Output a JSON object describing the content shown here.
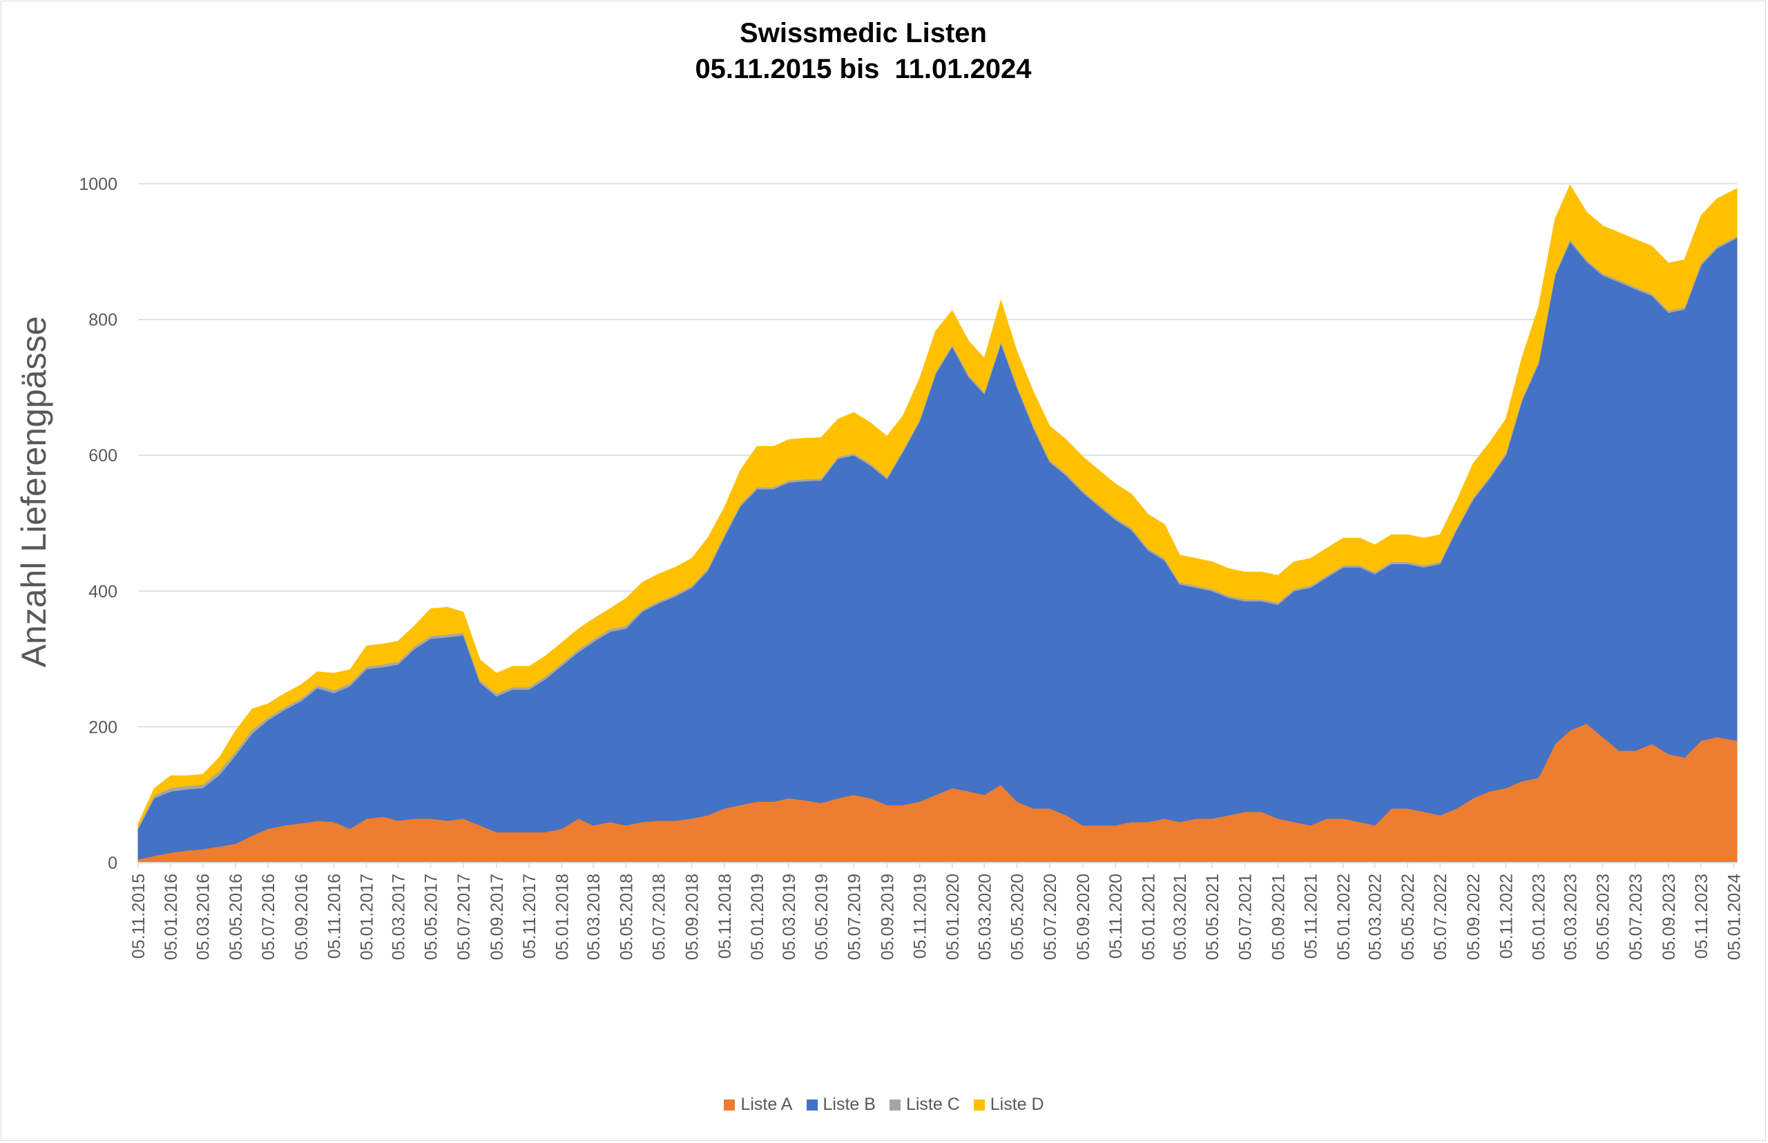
{
  "chart_data": {
    "type": "area",
    "stacked": true,
    "title": "Swissmedic Listen\n05.11.2015 bis  11.01.2024",
    "ylabel": "Anzahl Lieferengpässe",
    "xlabel": "",
    "ylim": [
      0,
      1100
    ],
    "yticks": [
      "0",
      "200",
      "400",
      "600",
      "800",
      "1000"
    ],
    "grid": "horizontal",
    "legend": "bottom",
    "x_start": "05.11.2015",
    "x_end": "11.01.2024",
    "x_tick_labels": [
      "05.11.2015",
      "05.01.2016",
      "05.03.2016",
      "05.05.2016",
      "05.07.2016",
      "05.09.2016",
      "05.11.2016",
      "05.01.2017",
      "05.03.2017",
      "05.05.2017",
      "05.07.2017",
      "05.09.2017",
      "05.11.2017",
      "05.01.2018",
      "05.03.2018",
      "05.05.2018",
      "05.07.2018",
      "05.09.2018",
      "05.11.2018",
      "05.01.2019",
      "05.03.2019",
      "05.05.2019",
      "05.07.2019",
      "05.09.2019",
      "05.11.2019",
      "05.01.2020",
      "05.03.2020",
      "05.05.2020",
      "05.07.2020",
      "05.09.2020",
      "05.11.2020",
      "05.01.2021",
      "05.03.2021",
      "05.05.2021",
      "05.07.2021",
      "05.09.2021",
      "05.11.2021",
      "05.01.2022",
      "05.03.2022",
      "05.05.2022",
      "05.07.2022",
      "05.09.2022",
      "05.11.2022",
      "05.01.2023",
      "05.03.2023",
      "05.05.2023",
      "05.07.2023",
      "05.09.2023",
      "05.11.2023",
      "05.01.2024"
    ],
    "x": [
      "05.11.2015",
      "05.12.2015",
      "05.01.2016",
      "05.02.2016",
      "05.03.2016",
      "05.04.2016",
      "05.05.2016",
      "05.06.2016",
      "05.07.2016",
      "05.08.2016",
      "05.09.2016",
      "05.10.2016",
      "05.11.2016",
      "05.12.2016",
      "05.01.2017",
      "05.02.2017",
      "05.03.2017",
      "05.04.2017",
      "05.05.2017",
      "05.06.2017",
      "05.07.2017",
      "05.08.2017",
      "05.09.2017",
      "05.10.2017",
      "05.11.2017",
      "05.12.2017",
      "05.01.2018",
      "05.02.2018",
      "05.03.2018",
      "05.04.2018",
      "05.05.2018",
      "05.06.2018",
      "05.07.2018",
      "05.08.2018",
      "05.09.2018",
      "05.10.2018",
      "05.11.2018",
      "05.12.2018",
      "05.01.2019",
      "05.02.2019",
      "05.03.2019",
      "05.04.2019",
      "05.05.2019",
      "05.06.2019",
      "05.07.2019",
      "05.08.2019",
      "05.09.2019",
      "05.10.2019",
      "05.11.2019",
      "05.12.2019",
      "05.01.2020",
      "05.02.2020",
      "05.03.2020",
      "05.04.2020",
      "05.05.2020",
      "05.06.2020",
      "05.07.2020",
      "05.08.2020",
      "05.09.2020",
      "05.10.2020",
      "05.11.2020",
      "05.12.2020",
      "05.01.2021",
      "05.02.2021",
      "05.03.2021",
      "05.04.2021",
      "05.05.2021",
      "05.06.2021",
      "05.07.2021",
      "05.08.2021",
      "05.09.2021",
      "05.10.2021",
      "05.11.2021",
      "05.12.2021",
      "05.01.2022",
      "05.02.2022",
      "05.03.2022",
      "05.04.2022",
      "05.05.2022",
      "05.06.2022",
      "05.07.2022",
      "05.08.2022",
      "05.09.2022",
      "05.10.2022",
      "05.11.2022",
      "05.12.2022",
      "05.01.2023",
      "05.02.2023",
      "05.03.2023",
      "05.04.2023",
      "05.05.2023",
      "05.06.2023",
      "05.07.2023",
      "05.08.2023",
      "05.09.2023",
      "05.10.2023",
      "05.11.2023",
      "05.12.2023",
      "11.01.2024"
    ],
    "series": [
      {
        "name": "Liste A",
        "color": "#ED7D31",
        "values": [
          5,
          10,
          15,
          18,
          20,
          24,
          28,
          40,
          50,
          55,
          58,
          62,
          60,
          50,
          65,
          68,
          62,
          65,
          65,
          62,
          65,
          55,
          45,
          45,
          45,
          45,
          50,
          65,
          55,
          60,
          55,
          60,
          62,
          62,
          65,
          70,
          80,
          85,
          90,
          90,
          95,
          92,
          88,
          95,
          100,
          95,
          85,
          85,
          90,
          100,
          110,
          105,
          100,
          115,
          90,
          80,
          80,
          70,
          55,
          55,
          55,
          60,
          60,
          65,
          60,
          65,
          65,
          70,
          75,
          75,
          65,
          60,
          55,
          65,
          65,
          60,
          55,
          80,
          80,
          75,
          70,
          80,
          95,
          105,
          110,
          120,
          125,
          175,
          195,
          205,
          185,
          165,
          165,
          175,
          160,
          155,
          180,
          185,
          180
        ]
      },
      {
        "name": "Liste B",
        "color": "#4472C4",
        "values": [
          45,
          85,
          90,
          90,
          90,
          105,
          130,
          150,
          160,
          170,
          180,
          195,
          190,
          210,
          220,
          220,
          230,
          250,
          265,
          270,
          270,
          210,
          200,
          210,
          210,
          225,
          240,
          245,
          270,
          280,
          290,
          310,
          320,
          330,
          340,
          360,
          400,
          440,
          460,
          460,
          465,
          470,
          475,
          500,
          500,
          490,
          480,
          520,
          560,
          620,
          650,
          610,
          590,
          650,
          610,
          560,
          510,
          500,
          490,
          470,
          450,
          430,
          400,
          380,
          350,
          340,
          335,
          320,
          310,
          310,
          315,
          340,
          350,
          355,
          370,
          375,
          370,
          360,
          360,
          360,
          370,
          410,
          440,
          460,
          490,
          560,
          610,
          690,
          720,
          680,
          680,
          690,
          680,
          660,
          650,
          660,
          700,
          720,
          740
        ]
      },
      {
        "name": "Liste C",
        "color": "#A5A5A5",
        "values": [
          2,
          4,
          5,
          5,
          5,
          6,
          6,
          6,
          4,
          4,
          4,
          4,
          4,
          4,
          4,
          4,
          4,
          4,
          4,
          4,
          4,
          4,
          4,
          4,
          4,
          4,
          4,
          4,
          4,
          4,
          4,
          3,
          3,
          3,
          3,
          3,
          3,
          3,
          3,
          3,
          3,
          3,
          3,
          3,
          3,
          3,
          3,
          3,
          3,
          3,
          3,
          3,
          3,
          3,
          3,
          3,
          3,
          3,
          3,
          3,
          3,
          3,
          3,
          3,
          3,
          3,
          3,
          3,
          3,
          3,
          3,
          3,
          3,
          3,
          3,
          3,
          3,
          3,
          3,
          3,
          3,
          3,
          3,
          3,
          3,
          3,
          3,
          3,
          3,
          3,
          3,
          3,
          3,
          3,
          3,
          3,
          3,
          3,
          3
        ]
      },
      {
        "name": "Liste D",
        "color": "#FFC000",
        "values": [
          5,
          10,
          18,
          15,
          15,
          20,
          30,
          30,
          20,
          20,
          20,
          20,
          25,
          20,
          30,
          30,
          30,
          30,
          40,
          40,
          30,
          30,
          30,
          30,
          30,
          30,
          30,
          30,
          30,
          30,
          40,
          40,
          40,
          40,
          40,
          45,
          40,
          50,
          60,
          60,
          60,
          60,
          60,
          55,
          60,
          60,
          60,
          50,
          60,
          60,
          50,
          50,
          50,
          60,
          50,
          50,
          50,
          50,
          50,
          50,
          50,
          50,
          50,
          50,
          40,
          40,
          40,
          40,
          40,
          40,
          40,
          40,
          40,
          40,
          40,
          40,
          40,
          40,
          40,
          40,
          40,
          40,
          50,
          50,
          50,
          60,
          80,
          80,
          80,
          70,
          70,
          70,
          70,
          70,
          70,
          70,
          70,
          70,
          70
        ]
      }
    ]
  }
}
